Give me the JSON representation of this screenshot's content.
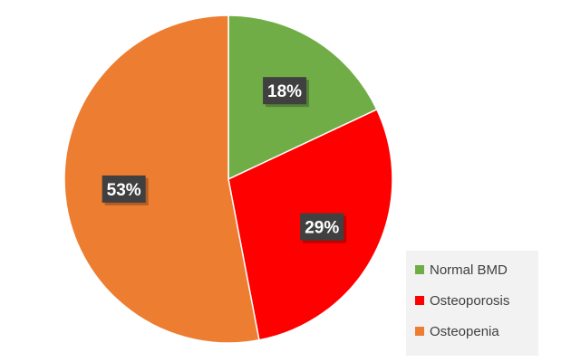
{
  "chart_data": {
    "type": "pie",
    "categories": [
      "Normal BMD",
      "Osteoporosis",
      "Osteopenia"
    ],
    "values": [
      18,
      29,
      53
    ],
    "data_labels": [
      "18%",
      "29%",
      "53%"
    ],
    "colors": [
      "#70ad47",
      "#ff0000",
      "#ed7d31"
    ],
    "label_box_color": "#404040",
    "legend_position": "bottom-right",
    "start_angle_deg": 0,
    "direction": "clockwise",
    "title": ""
  },
  "legend": {
    "items": [
      {
        "label": "Normal BMD",
        "color": "#70ad47"
      },
      {
        "label": "Osteoporosis",
        "color": "#ff0000"
      },
      {
        "label": "Osteopenia",
        "color": "#ed7d31"
      }
    ]
  }
}
